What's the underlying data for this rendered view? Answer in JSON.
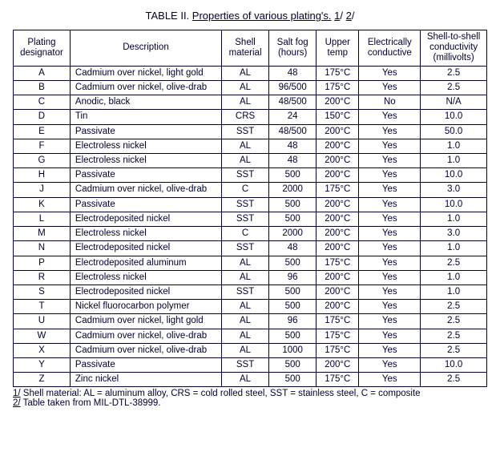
{
  "title_prefix": "TABLE II.  ",
  "title_text": "Properties of various plating's.",
  "title_suffix_1": "1",
  "title_suffix_2": "2",
  "columns": [
    "Plating designator",
    "Description",
    "Shell material",
    "Salt fog (hours)",
    "Upper temp",
    "Electrically conductive",
    "Shell-to-shell conductivity (millivolts)"
  ],
  "rows": [
    {
      "d": "A",
      "desc": "Cadmium over nickel, light gold",
      "shell": "AL",
      "salt": "48",
      "temp": "175°C",
      "cond": "Yes",
      "s2s": "2.5"
    },
    {
      "d": "B",
      "desc": "Cadmium over nickel, olive-drab",
      "shell": "AL",
      "salt": "96/500",
      "temp": "175°C",
      "cond": "Yes",
      "s2s": "2.5"
    },
    {
      "d": "C",
      "desc": "Anodic, black",
      "shell": "AL",
      "salt": "48/500",
      "temp": "200°C",
      "cond": "No",
      "s2s": "N/A"
    },
    {
      "d": "D",
      "desc": "Tin",
      "shell": "CRS",
      "salt": "24",
      "temp": "150°C",
      "cond": "Yes",
      "s2s": "10.0"
    },
    {
      "d": "E",
      "desc": "Passivate",
      "shell": "SST",
      "salt": "48/500",
      "temp": "200°C",
      "cond": "Yes",
      "s2s": "50.0"
    },
    {
      "d": "F",
      "desc": "Electroless nickel",
      "shell": "AL",
      "salt": "48",
      "temp": "200°C",
      "cond": "Yes",
      "s2s": "1.0"
    },
    {
      "d": "G",
      "desc": "Electroless nickel",
      "shell": "AL",
      "salt": "48",
      "temp": "200°C",
      "cond": "Yes",
      "s2s": "1.0"
    },
    {
      "d": "H",
      "desc": "Passivate",
      "shell": "SST",
      "salt": "500",
      "temp": "200°C",
      "cond": "Yes",
      "s2s": "10.0"
    },
    {
      "d": "J",
      "desc": "Cadmium over nickel, olive-drab",
      "shell": "C",
      "salt": "2000",
      "temp": "175°C",
      "cond": "Yes",
      "s2s": "3.0"
    },
    {
      "d": "K",
      "desc": "Passivate",
      "shell": "SST",
      "salt": "500",
      "temp": "200°C",
      "cond": "Yes",
      "s2s": "10.0"
    },
    {
      "d": "L",
      "desc": "Electrodeposited nickel",
      "shell": "SST",
      "salt": "500",
      "temp": "200°C",
      "cond": "Yes",
      "s2s": "1.0"
    },
    {
      "d": "M",
      "desc": "Electroless nickel",
      "shell": "C",
      "salt": "2000",
      "temp": "200°C",
      "cond": "Yes",
      "s2s": "3.0"
    },
    {
      "d": "N",
      "desc": "Electrodeposited nickel",
      "shell": "SST",
      "salt": "48",
      "temp": "200°C",
      "cond": "Yes",
      "s2s": "1.0"
    },
    {
      "d": "P",
      "desc": "Electrodeposited aluminum",
      "shell": "AL",
      "salt": "500",
      "temp": "175°C",
      "cond": "Yes",
      "s2s": "2.5"
    },
    {
      "d": "R",
      "desc": "Electroless nickel",
      "shell": "AL",
      "salt": "96",
      "temp": "200°C",
      "cond": "Yes",
      "s2s": "1.0"
    },
    {
      "d": "S",
      "desc": "Electrodeposited nickel",
      "shell": "SST",
      "salt": "500",
      "temp": "200°C",
      "cond": "Yes",
      "s2s": "1.0"
    },
    {
      "d": "T",
      "desc": "Nickel fluorocarbon polymer",
      "shell": "AL",
      "salt": "500",
      "temp": "200°C",
      "cond": "Yes",
      "s2s": "2.5"
    },
    {
      "d": "U",
      "desc": "Cadmium over nickel, light gold",
      "shell": "AL",
      "salt": "96",
      "temp": "175°C",
      "cond": "Yes",
      "s2s": "2.5"
    },
    {
      "d": "W",
      "desc": "Cadmium over nickel, olive-drab",
      "shell": "AL",
      "salt": "500",
      "temp": "175°C",
      "cond": "Yes",
      "s2s": "2.5"
    },
    {
      "d": "X",
      "desc": "Cadmium over nickel, olive-drab",
      "shell": "AL",
      "salt": "1000",
      "temp": "175°C",
      "cond": "Yes",
      "s2s": "2.5"
    },
    {
      "d": "Y",
      "desc": "Passivate",
      "shell": "SST",
      "salt": "500",
      "temp": "200°C",
      "cond": "Yes",
      "s2s": "10.0"
    },
    {
      "d": "Z",
      "desc": "Zinc nickel",
      "shell": "AL",
      "salt": "500",
      "temp": "175°C",
      "cond": "Yes",
      "s2s": "2.5"
    }
  ],
  "footnote1_num": "1/",
  "footnote1_text": " Shell material:  AL = aluminum alloy, CRS = cold rolled steel, SST = stainless steel, C = composite",
  "footnote2_num": "2/",
  "footnote2_text": " Table taken from MIL-DTL-38999."
}
